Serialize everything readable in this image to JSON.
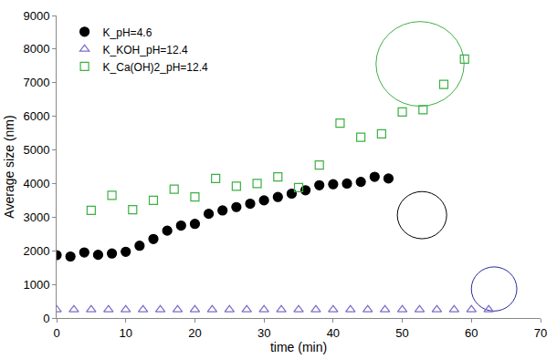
{
  "chart_data": {
    "type": "scatter",
    "x_label": "time (min)",
    "y_label": "Average size (nm)",
    "xlim": [
      0,
      70
    ],
    "xticks": [
      0,
      10,
      20,
      30,
      40,
      50,
      60,
      70
    ],
    "ylim": [
      0,
      9000
    ],
    "yticks": [
      0,
      1000,
      2000,
      3000,
      4000,
      5000,
      6000,
      7000,
      8000,
      9000
    ],
    "grid": false,
    "legend": "upper left",
    "series": [
      {
        "name": "K_pH=4.6",
        "color": "#000000",
        "marker": "circle",
        "x": [
          0,
          2,
          4,
          6,
          8,
          10,
          12,
          14,
          16,
          18,
          20,
          22,
          24,
          26,
          28,
          30,
          32,
          34,
          36,
          38,
          40,
          42,
          44,
          46,
          48
        ],
        "values": [
          1870,
          1830,
          1950,
          1880,
          1920,
          1970,
          2150,
          2350,
          2600,
          2750,
          2800,
          3100,
          3200,
          3300,
          3400,
          3500,
          3600,
          3700,
          3800,
          3950,
          3980,
          4000,
          4050,
          4200,
          4150
        ]
      },
      {
        "name": "K_KOH_pH=12.4",
        "color": "#7a6fc9",
        "marker": "triangle-up-open",
        "x": [
          0,
          2.5,
          5,
          7.5,
          10,
          12.5,
          15,
          17.5,
          20,
          22.5,
          25,
          27.5,
          30,
          32.5,
          35,
          37.5,
          40,
          42.5,
          45,
          47.5,
          50,
          52.5,
          55,
          57.5,
          60,
          62.5
        ],
        "values": [
          250,
          250,
          250,
          250,
          250,
          250,
          250,
          250,
          250,
          250,
          250,
          250,
          250,
          250,
          250,
          250,
          250,
          250,
          250,
          250,
          250,
          250,
          250,
          250,
          250,
          250
        ]
      },
      {
        "name": "K_Ca(OH)2_pH=12.4",
        "color": "#3cb043",
        "marker": "square-open",
        "x": [
          5,
          8,
          11,
          14,
          17,
          20,
          23,
          26,
          29,
          32,
          35,
          38,
          41,
          44,
          47,
          50,
          53,
          56,
          59
        ],
        "values": [
          3200,
          3650,
          3220,
          3500,
          3830,
          3600,
          4150,
          3920,
          4000,
          4200,
          3880,
          4550,
          5800,
          5380,
          5480,
          6130,
          6200,
          6950,
          7700
        ]
      }
    ]
  }
}
